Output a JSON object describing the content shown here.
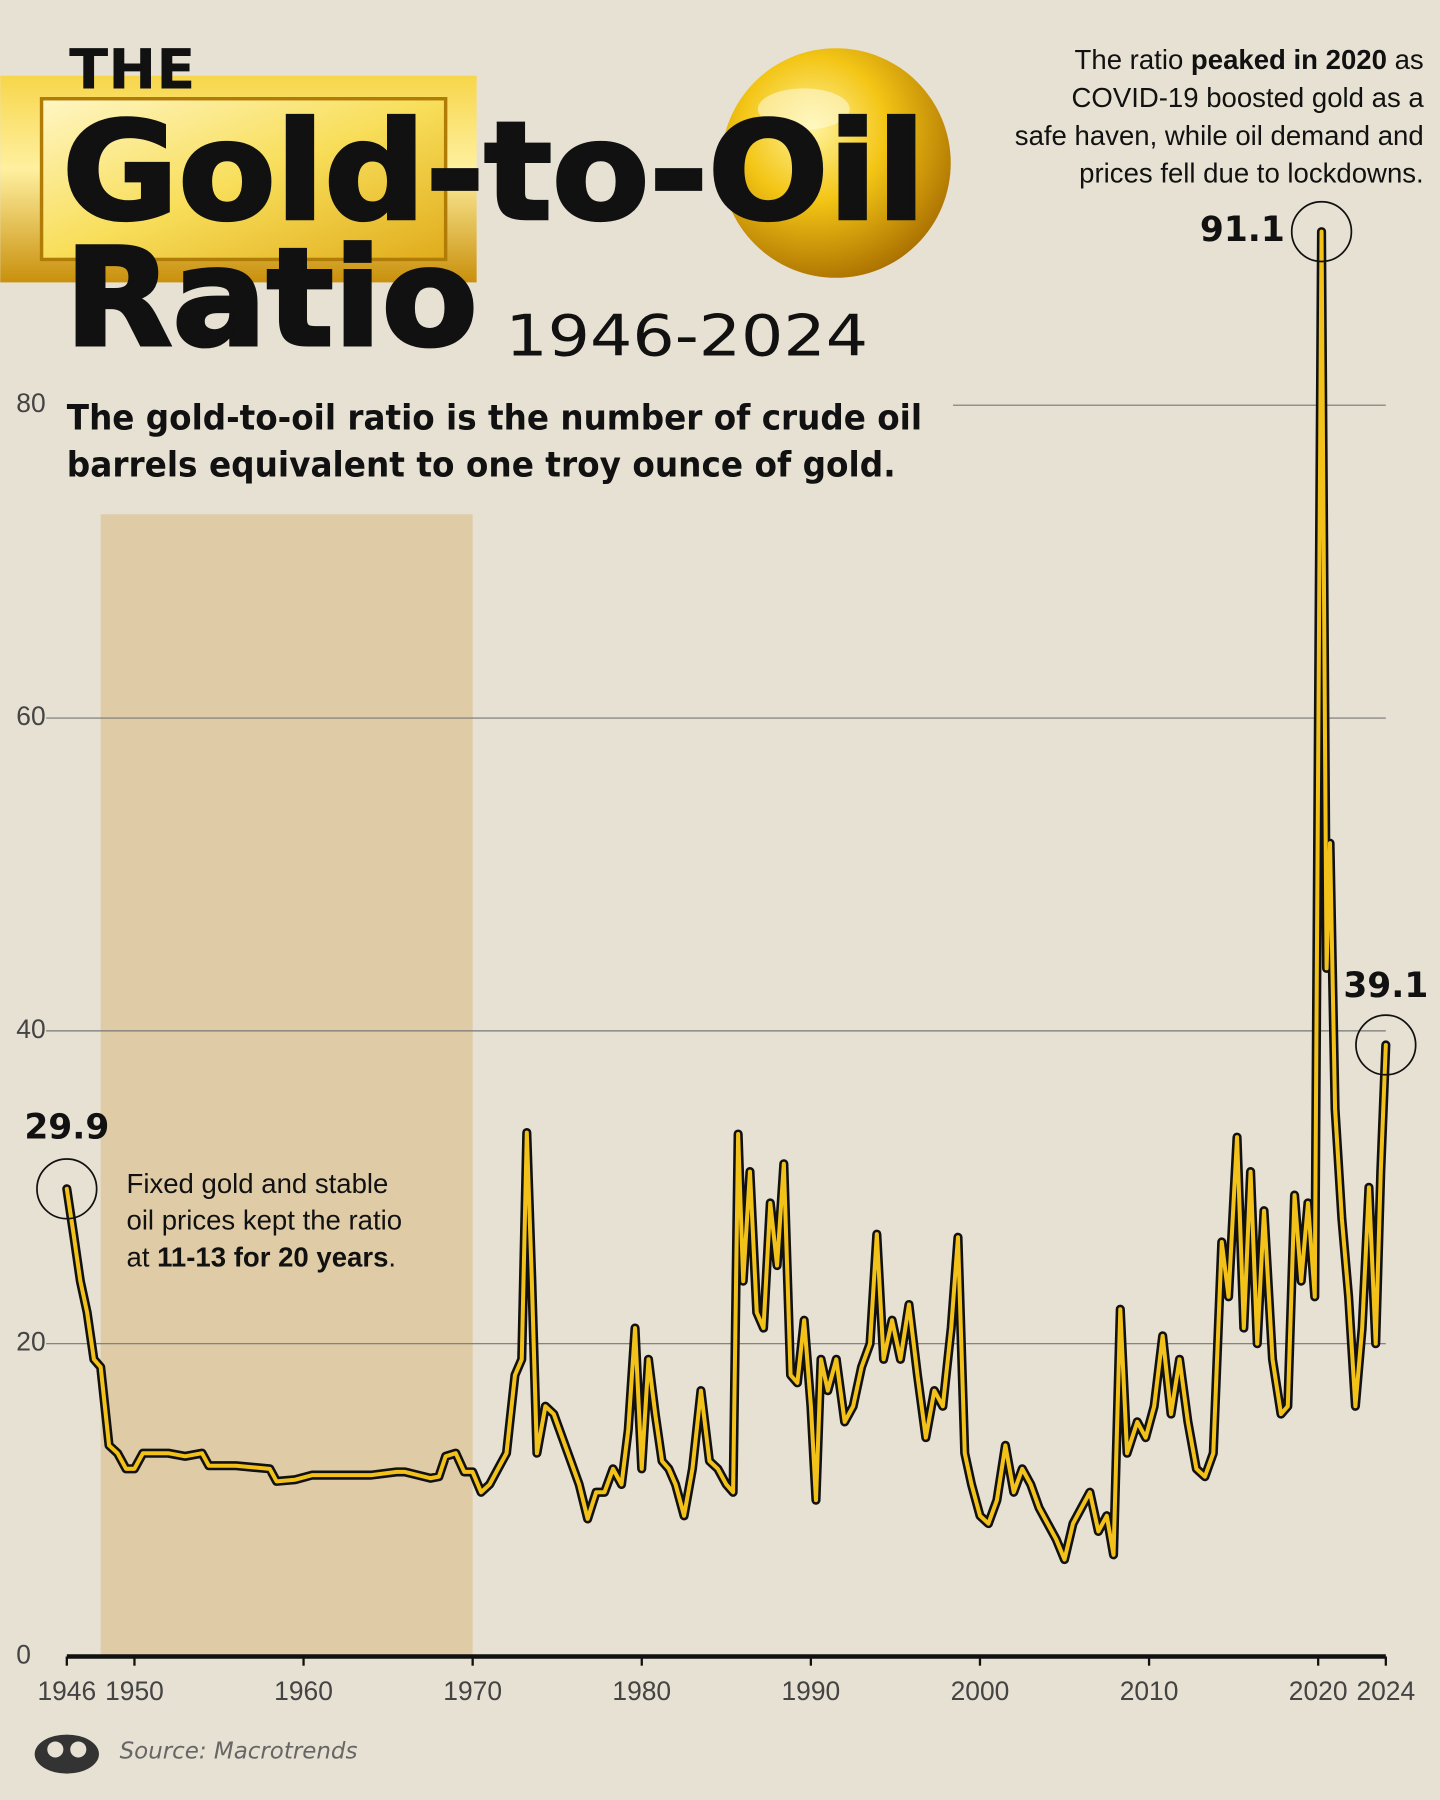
{
  "chart_data": {
    "type": "line",
    "title_prefix": "THE",
    "title": "Gold-to-Oil",
    "title_line2": "Ratio",
    "subtitle": "1946-2024",
    "description": [
      "The gold-to-oil ratio is the number of crude oil",
      "barrels equivalent to one troy ounce of gold."
    ],
    "annotations": [
      {
        "lines": [
          [
            {
              "text": "The ratio "
            },
            {
              "text": "peaked in 2020",
              "bold": true
            },
            {
              "text": " as"
            }
          ],
          [
            {
              "text": "COVID-19 boosted gold as a"
            }
          ],
          [
            {
              "text": "safe haven, while oil demand and"
            }
          ],
          [
            {
              "text": "prices fell due to lockdowns."
            }
          ]
        ]
      },
      {
        "lines": [
          [
            {
              "text": "Fixed gold and stable"
            }
          ],
          [
            {
              "text": "oil prices kept the ratio"
            }
          ],
          [
            {
              "text": "at "
            },
            {
              "text": "11-13 for 20 years",
              "bold": true
            },
            {
              "text": "."
            }
          ]
        ]
      }
    ],
    "source": "Source: Macrotrends",
    "shaded_range": [
      1948,
      1970
    ],
    "x": [
      1946.0,
      1946.4,
      1946.8,
      1947.2,
      1947.6,
      1948.0,
      1948.5,
      1949.0,
      1949.5,
      1950.0,
      1950.5,
      1951.0,
      1952.0,
      1953.0,
      1954.0,
      1954.4,
      1956.0,
      1958.0,
      1958.4,
      1959.5,
      1960.5,
      1962.0,
      1964.0,
      1965.5,
      1966.0,
      1967.5,
      1968.0,
      1968.4,
      1969.0,
      1969.5,
      1970.0,
      1970.5,
      1971.0,
      1971.5,
      1972.0,
      1972.5,
      1972.9,
      1973.2,
      1973.5,
      1973.8,
      1974.3,
      1974.8,
      1975.3,
      1975.8,
      1976.3,
      1976.8,
      1977.3,
      1977.8,
      1978.3,
      1978.8,
      1979.2,
      1979.6,
      1980.0,
      1980.4,
      1980.8,
      1981.2,
      1981.6,
      1982.0,
      1982.5,
      1983.0,
      1983.5,
      1984.0,
      1984.5,
      1985.0,
      1985.4,
      1985.7,
      1986.0,
      1986.4,
      1986.8,
      1987.2,
      1987.6,
      1988.0,
      1988.4,
      1988.8,
      1989.2,
      1989.6,
      1990.0,
      1990.3,
      1990.6,
      1991.0,
      1991.5,
      1992.0,
      1992.5,
      1993.0,
      1993.5,
      1993.9,
      1994.3,
      1994.8,
      1995.3,
      1995.8,
      1996.3,
      1996.8,
      1997.3,
      1997.8,
      1998.3,
      1998.7,
      1999.1,
      1999.5,
      2000.0,
      2000.5,
      2001.0,
      2001.5,
      2002.0,
      2002.5,
      2003.0,
      2003.5,
      2004.0,
      2004.5,
      2005.0,
      2005.5,
      2006.0,
      2006.5,
      2007.0,
      2007.5,
      2007.9,
      2008.3,
      2008.7,
      2009.3,
      2009.8,
      2010.3,
      2010.8,
      2011.3,
      2011.8,
      2012.3,
      2012.8,
      2013.3,
      2013.8,
      2014.3,
      2014.7,
      2015.2,
      2015.6,
      2016.0,
      2016.4,
      2016.8,
      2017.3,
      2017.8,
      2018.2,
      2018.6,
      2019.0,
      2019.4,
      2019.8,
      2020.2,
      2020.5,
      2020.7,
      2021.0,
      2021.4,
      2021.8,
      2022.2,
      2022.6,
      2023.0,
      2023.4,
      2023.7,
      2024.0
    ],
    "values": [
      29.9,
      27,
      24,
      22,
      19,
      18.5,
      13.5,
      13,
      12,
      12,
      13,
      13,
      13,
      12.8,
      13,
      12.2,
      12.2,
      12,
      11.2,
      11.3,
      11.6,
      11.6,
      11.6,
      11.8,
      11.8,
      11.4,
      11.5,
      12.8,
      13,
      11.8,
      11.8,
      10.5,
      11,
      12,
      13,
      18,
      19,
      33.5,
      24,
      13,
      16,
      15.5,
      14,
      12.5,
      11,
      8.8,
      10.5,
      10.5,
      12,
      11,
      14.5,
      21,
      12,
      19,
      15.5,
      12.5,
      12,
      11,
      9,
      12,
      17,
      12.5,
      12,
      11,
      10.5,
      33.4,
      24,
      31,
      22,
      21,
      29,
      25,
      31.5,
      18,
      17.5,
      21.5,
      16,
      10,
      19,
      17,
      19,
      15,
      16,
      18.5,
      20,
      27,
      19,
      21.5,
      19,
      22.5,
      18,
      14,
      17,
      16,
      21,
      26.8,
      13,
      11,
      9,
      8.5,
      10,
      13.5,
      10.5,
      12,
      11,
      9.5,
      8.5,
      7.5,
      6.2,
      8.5,
      9.5,
      10.5,
      8,
      9,
      6.5,
      22.2,
      13,
      15,
      14,
      16,
      20.5,
      15.5,
      19,
      15,
      12,
      11.5,
      13,
      26.5,
      23,
      33.2,
      21,
      31,
      20,
      28.5,
      19,
      15.5,
      16,
      29.5,
      24,
      29,
      23,
      91.1,
      44,
      52,
      35,
      28,
      23,
      16,
      21,
      30,
      20,
      31,
      39.1
    ],
    "color": "#f2c21b",
    "outline_color": "#111111",
    "xlim": [
      1946,
      2024
    ],
    "xticks": [
      1946,
      1950,
      1960,
      1970,
      1980,
      1990,
      2000,
      2010,
      2020,
      2024
    ],
    "ylim": [
      0,
      100
    ],
    "yticks": [
      0,
      20,
      40,
      60,
      80
    ],
    "grid": true
  }
}
